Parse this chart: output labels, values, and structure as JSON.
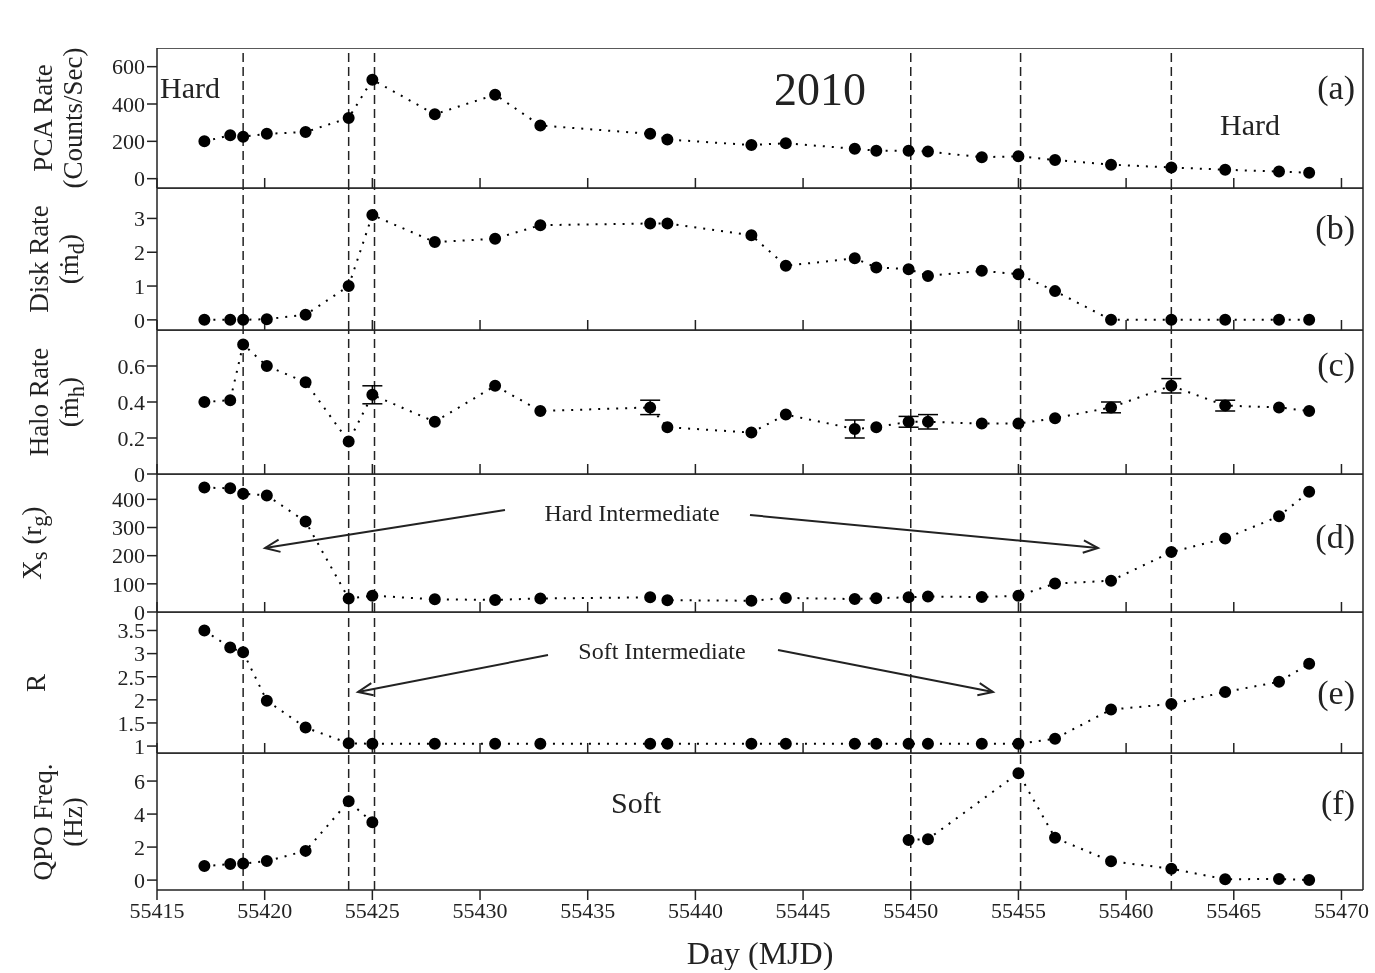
{
  "chart_data": [
    {
      "type": "line",
      "ylabel": "PCA Rate\n(Counts/Sec)",
      "x": [
        55417.2,
        55418.4,
        55419.0,
        55420.1,
        55421.9,
        55423.9,
        55425.0,
        55427.9,
        55430.7,
        55432.8,
        55437.9,
        55438.7,
        55442.6,
        55444.2,
        55447.4,
        55448.4,
        55449.9,
        55450.8,
        55453.3,
        55455.0,
        55456.7,
        55459.3,
        55462.1,
        55464.6,
        55467.1,
        55468.5
      ],
      "series": [
        {
          "color": "#000000",
          "values": [
            200,
            232,
            225,
            240,
            250,
            325,
            530,
            345,
            450,
            285,
            240,
            210,
            180,
            190,
            160,
            150,
            150,
            145,
            115,
            120,
            100,
            75,
            60,
            48,
            38,
            32
          ]
        }
      ],
      "xlim": [
        55415,
        55471
      ],
      "xticks": [
        55415,
        55420,
        55425,
        55430,
        55435,
        55440,
        55445,
        55450,
        55455,
        55460,
        55465,
        55470
      ],
      "ylim": [
        -50,
        700
      ],
      "yticks": [
        0,
        200,
        400,
        600
      ],
      "tick_labels": "y",
      "marker": "circle",
      "line_style": "dotted",
      "ref_lines": [
        {
          "axis": "x",
          "value": 55419.0,
          "line_style": "dashed"
        },
        {
          "axis": "x",
          "value": 55423.9,
          "line_style": "dashed"
        },
        {
          "axis": "x",
          "value": 55425.1,
          "line_style": "dashed"
        },
        {
          "axis": "x",
          "value": 55450.0,
          "line_style": "dashed"
        },
        {
          "axis": "x",
          "value": 55455.1,
          "line_style": "dashed"
        },
        {
          "axis": "x",
          "value": 55462.1,
          "line_style": "dashed"
        }
      ],
      "annotations": [
        "Hard",
        "2010",
        "Hard",
        "(a)"
      ]
    },
    {
      "type": "line",
      "ylabel": "Disk Rate\n(ṁ$_{d}$)",
      "x": [
        55417.2,
        55418.4,
        55419.0,
        55420.1,
        55421.9,
        55423.9,
        55425.0,
        55427.9,
        55430.7,
        55432.8,
        55437.9,
        55438.7,
        55442.6,
        55444.2,
        55447.4,
        55448.4,
        55449.9,
        55450.8,
        55453.3,
        55455.0,
        55456.7,
        55459.3,
        55462.1,
        55464.6,
        55467.1,
        55468.5
      ],
      "series": [
        {
          "color": "#000000",
          "values": [
            0,
            0,
            0,
            0.02,
            0.15,
            1.0,
            3.1,
            2.3,
            2.4,
            2.8,
            2.85,
            2.85,
            2.5,
            1.6,
            1.82,
            1.55,
            1.5,
            1.3,
            1.45,
            1.35,
            0.85,
            0,
            0,
            0,
            0,
            0
          ]
        }
      ],
      "xlim": [
        55415,
        55471
      ],
      "xticks": [
        55415,
        55420,
        55425,
        55430,
        55435,
        55440,
        55445,
        55450,
        55455,
        55460,
        55465,
        55470
      ],
      "ylim": [
        -0.3,
        3.9
      ],
      "yticks": [
        0,
        1,
        2,
        3
      ],
      "tick_labels": "y",
      "marker": "circle",
      "line_style": "dotted",
      "ref_lines": [
        {
          "axis": "x",
          "value": 55419.0,
          "line_style": "dashed"
        },
        {
          "axis": "x",
          "value": 55423.9,
          "line_style": "dashed"
        },
        {
          "axis": "x",
          "value": 55425.1,
          "line_style": "dashed"
        },
        {
          "axis": "x",
          "value": 55450.0,
          "line_style": "dashed"
        },
        {
          "axis": "x",
          "value": 55455.1,
          "line_style": "dashed"
        },
        {
          "axis": "x",
          "value": 55462.1,
          "line_style": "dashed"
        }
      ],
      "annotations": [
        "(b)"
      ]
    },
    {
      "type": "line",
      "ylabel": "Halo Rate\n(ṁ$_{h}$)",
      "x": [
        55417.2,
        55418.4,
        55419.0,
        55420.1,
        55421.9,
        55423.9,
        55425.0,
        55427.9,
        55430.7,
        55432.8,
        55437.9,
        55438.7,
        55442.6,
        55444.2,
        55447.4,
        55448.4,
        55449.9,
        55450.8,
        55453.3,
        55455.0,
        55456.7,
        55459.3,
        55462.1,
        55464.6,
        55467.1,
        55468.5
      ],
      "series": [
        {
          "color": "#000000",
          "values": [
            0.4,
            0.41,
            0.72,
            0.6,
            0.51,
            0.18,
            0.44,
            0.29,
            0.49,
            0.35,
            0.37,
            0.26,
            0.23,
            0.33,
            0.25,
            0.26,
            0.29,
            0.29,
            0.28,
            0.28,
            0.31,
            0.37,
            0.49,
            0.38,
            0.37,
            0.35
          ],
          "errors": [
            null,
            null,
            null,
            null,
            null,
            null,
            0.05,
            null,
            null,
            null,
            0.04,
            null,
            null,
            null,
            0.05,
            null,
            0.03,
            0.04,
            null,
            null,
            null,
            0.03,
            0.04,
            0.03,
            null,
            null
          ]
        }
      ],
      "xlim": [
        55415,
        55471
      ],
      "xticks": [
        55415,
        55420,
        55425,
        55430,
        55435,
        55440,
        55445,
        55450,
        55455,
        55460,
        55465,
        55470
      ],
      "ylim": [
        0,
        0.8
      ],
      "yticks": [
        0,
        0.2,
        0.4,
        0.6
      ],
      "tick_labels": "y",
      "marker": "circle",
      "line_style": "dotted",
      "ref_lines": [
        {
          "axis": "x",
          "value": 55419.0,
          "line_style": "dashed"
        },
        {
          "axis": "x",
          "value": 55423.9,
          "line_style": "dashed"
        },
        {
          "axis": "x",
          "value": 55425.1,
          "line_style": "dashed"
        },
        {
          "axis": "x",
          "value": 55450.0,
          "line_style": "dashed"
        },
        {
          "axis": "x",
          "value": 55455.1,
          "line_style": "dashed"
        },
        {
          "axis": "x",
          "value": 55462.1,
          "line_style": "dashed"
        }
      ],
      "annotations": [
        "(c)"
      ]
    },
    {
      "type": "line",
      "ylabel": "X$_{s}$ (r$_{g}$)",
      "x": [
        55417.2,
        55418.4,
        55419.0,
        55420.1,
        55421.9,
        55423.9,
        55425.0,
        55427.9,
        55430.7,
        55432.8,
        55437.9,
        55438.7,
        55442.6,
        55444.2,
        55447.4,
        55448.4,
        55449.9,
        55450.8,
        55453.3,
        55455.0,
        55456.7,
        55459.3,
        55462.1,
        55464.6,
        55467.1,
        55468.5
      ],
      "series": [
        {
          "color": "#000000",
          "values": [
            442,
            439,
            420,
            414,
            321,
            48,
            58,
            45,
            43,
            48,
            52,
            42,
            40,
            50,
            46,
            49,
            52,
            55,
            53,
            58,
            101,
            111,
            213,
            261,
            340,
            427
          ]
        }
      ],
      "xlim": [
        55415,
        55471
      ],
      "xticks": [
        55415,
        55420,
        55425,
        55430,
        55435,
        55440,
        55445,
        55450,
        55455,
        55460,
        55465,
        55470
      ],
      "ylim": [
        0,
        490
      ],
      "yticks": [
        0,
        100,
        200,
        300,
        400
      ],
      "tick_labels": "y",
      "marker": "circle",
      "line_style": "dotted",
      "ref_lines": [
        {
          "axis": "x",
          "value": 55419.0,
          "line_style": "dashed"
        },
        {
          "axis": "x",
          "value": 55423.9,
          "line_style": "dashed"
        },
        {
          "axis": "x",
          "value": 55425.1,
          "line_style": "dashed"
        },
        {
          "axis": "x",
          "value": 55450.0,
          "line_style": "dashed"
        },
        {
          "axis": "x",
          "value": 55455.1,
          "line_style": "dashed"
        },
        {
          "axis": "x",
          "value": 55462.1,
          "line_style": "dashed"
        }
      ],
      "annotations": [
        "Hard Intermediate",
        "(d)"
      ]
    },
    {
      "type": "line",
      "ylabel": "R",
      "x": [
        55417.2,
        55418.4,
        55419.0,
        55420.1,
        55421.9,
        55423.9,
        55425.0,
        55427.9,
        55430.7,
        55432.8,
        55437.9,
        55438.7,
        55442.6,
        55444.2,
        55447.4,
        55448.4,
        55449.9,
        55450.8,
        55453.3,
        55455.0,
        55456.7,
        55459.3,
        55462.1,
        55464.6,
        55467.1,
        55468.5
      ],
      "series": [
        {
          "color": "#000000",
          "values": [
            3.5,
            3.13,
            3.03,
            1.98,
            1.4,
            1.06,
            1.05,
            1.05,
            1.05,
            1.05,
            1.05,
            1.05,
            1.05,
            1.05,
            1.05,
            1.05,
            1.05,
            1.05,
            1.05,
            1.05,
            1.16,
            1.79,
            1.91,
            2.17,
            2.39,
            2.78
          ]
        }
      ],
      "xlim": [
        55415,
        55471
      ],
      "xticks": [
        55415,
        55420,
        55425,
        55430,
        55435,
        55440,
        55445,
        55450,
        55455,
        55460,
        55465,
        55470
      ],
      "ylim": [
        0.85,
        3.9
      ],
      "yticks": [
        1,
        1.5,
        2,
        2.5,
        3,
        3.5
      ],
      "tick_labels": "y",
      "marker": "circle",
      "line_style": "dotted",
      "ref_lines": [
        {
          "axis": "x",
          "value": 55419.0,
          "line_style": "dashed"
        },
        {
          "axis": "x",
          "value": 55423.9,
          "line_style": "dashed"
        },
        {
          "axis": "x",
          "value": 55425.1,
          "line_style": "dashed"
        },
        {
          "axis": "x",
          "value": 55450.0,
          "line_style": "dashed"
        },
        {
          "axis": "x",
          "value": 55455.1,
          "line_style": "dashed"
        },
        {
          "axis": "x",
          "value": 55462.1,
          "line_style": "dashed"
        }
      ],
      "annotations": [
        "Soft Intermediate",
        "(e)"
      ]
    },
    {
      "type": "line",
      "ylabel": "QPO Freq.\n(Hz)",
      "xlabel": "Day (MJD)",
      "x": [
        55417.2,
        55418.4,
        55419.0,
        55420.1,
        55421.9,
        55423.9,
        55425.0,
        55437.9,
        55449.9,
        55450.8,
        55455.0,
        55456.7,
        55459.3,
        55462.1,
        55464.6,
        55467.1,
        55468.5
      ],
      "series": [
        {
          "color": "#000000",
          "values": [
            0.85,
            0.97,
            1.0,
            1.15,
            1.77,
            4.77,
            3.5,
            null,
            2.43,
            2.48,
            6.48,
            2.56,
            1.14,
            0.69,
            0.05,
            0.07,
            0.0
          ]
        }
      ],
      "xlim": [
        55415,
        55471
      ],
      "xticks": [
        55415,
        55420,
        55425,
        55430,
        55435,
        55440,
        55445,
        55450,
        55455,
        55460,
        55465,
        55470
      ],
      "ylim": [
        -0.6,
        7.7
      ],
      "yticks": [
        0,
        2,
        4,
        6
      ],
      "marker": "circle",
      "line_style": "dotted",
      "ref_lines": [
        {
          "axis": "x",
          "value": 55419.0,
          "line_style": "dashed"
        },
        {
          "axis": "x",
          "value": 55423.9,
          "line_style": "dashed"
        },
        {
          "axis": "x",
          "value": 55425.1,
          "line_style": "dashed"
        },
        {
          "axis": "x",
          "value": 55450.0,
          "line_style": "dashed"
        },
        {
          "axis": "x",
          "value": 55455.1,
          "line_style": "dashed"
        },
        {
          "axis": "x",
          "value": 55462.1,
          "line_style": "dashed"
        }
      ],
      "annotations": [
        "Soft",
        "(f)"
      ]
    }
  ]
}
